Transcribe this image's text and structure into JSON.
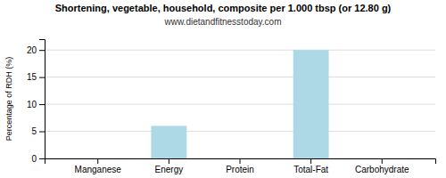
{
  "chart_data": {
    "type": "bar",
    "title": "Shortening, vegetable, household, composite per 1.000 tbsp (or 12.80 g)",
    "subtitle": "www.dietandfitnesstoday.com",
    "categories": [
      "Manganese",
      "Energy",
      "Protein",
      "Total-Fat",
      "Carbohydrate"
    ],
    "values": [
      0,
      6,
      0,
      20,
      0
    ],
    "color": "#add8e6",
    "ylabel": "Percentage of RDH (%)",
    "ylim": [
      0,
      22
    ],
    "yticks": [
      0,
      5,
      10,
      15,
      20
    ],
    "grid": true
  }
}
